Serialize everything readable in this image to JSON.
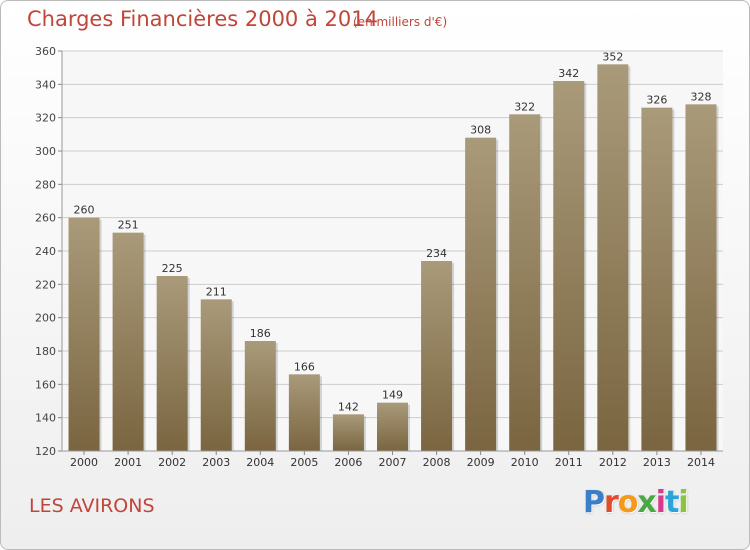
{
  "header": {
    "title": "Charges Financières 2000 à 2014",
    "subtitle": "(en milliers d'€)"
  },
  "footer": {
    "commune": "LES AVIRONS",
    "logo_letters": [
      "P",
      "r",
      "o",
      "x",
      "i",
      "t",
      "i"
    ],
    "logo_colors": [
      "#3a7fc8",
      "#e24b2b",
      "#f39a1c",
      "#4aa842",
      "#d83a8e",
      "#2aa5d8",
      "#8bc43f"
    ]
  },
  "colors": {
    "bar_top": "#a99a7a",
    "bar_bottom": "#7a6540",
    "accent": "#c0463a",
    "grid": "#cccccc"
  },
  "chart_data": {
    "type": "bar",
    "title": "Charges Financières 2000 à 2014",
    "subtitle": "(en milliers d'€)",
    "xlabel": "",
    "ylabel": "",
    "categories": [
      "2000",
      "2001",
      "2002",
      "2003",
      "2004",
      "2005",
      "2006",
      "2007",
      "2008",
      "2009",
      "2010",
      "2011",
      "2012",
      "2013",
      "2014"
    ],
    "values": [
      260,
      251,
      225,
      211,
      186,
      166,
      142,
      149,
      234,
      308,
      322,
      342,
      352,
      326,
      328
    ],
    "ylim": [
      120,
      360
    ],
    "yticks": [
      120,
      140,
      160,
      180,
      200,
      220,
      240,
      260,
      280,
      300,
      320,
      340,
      360
    ],
    "grid": true
  }
}
